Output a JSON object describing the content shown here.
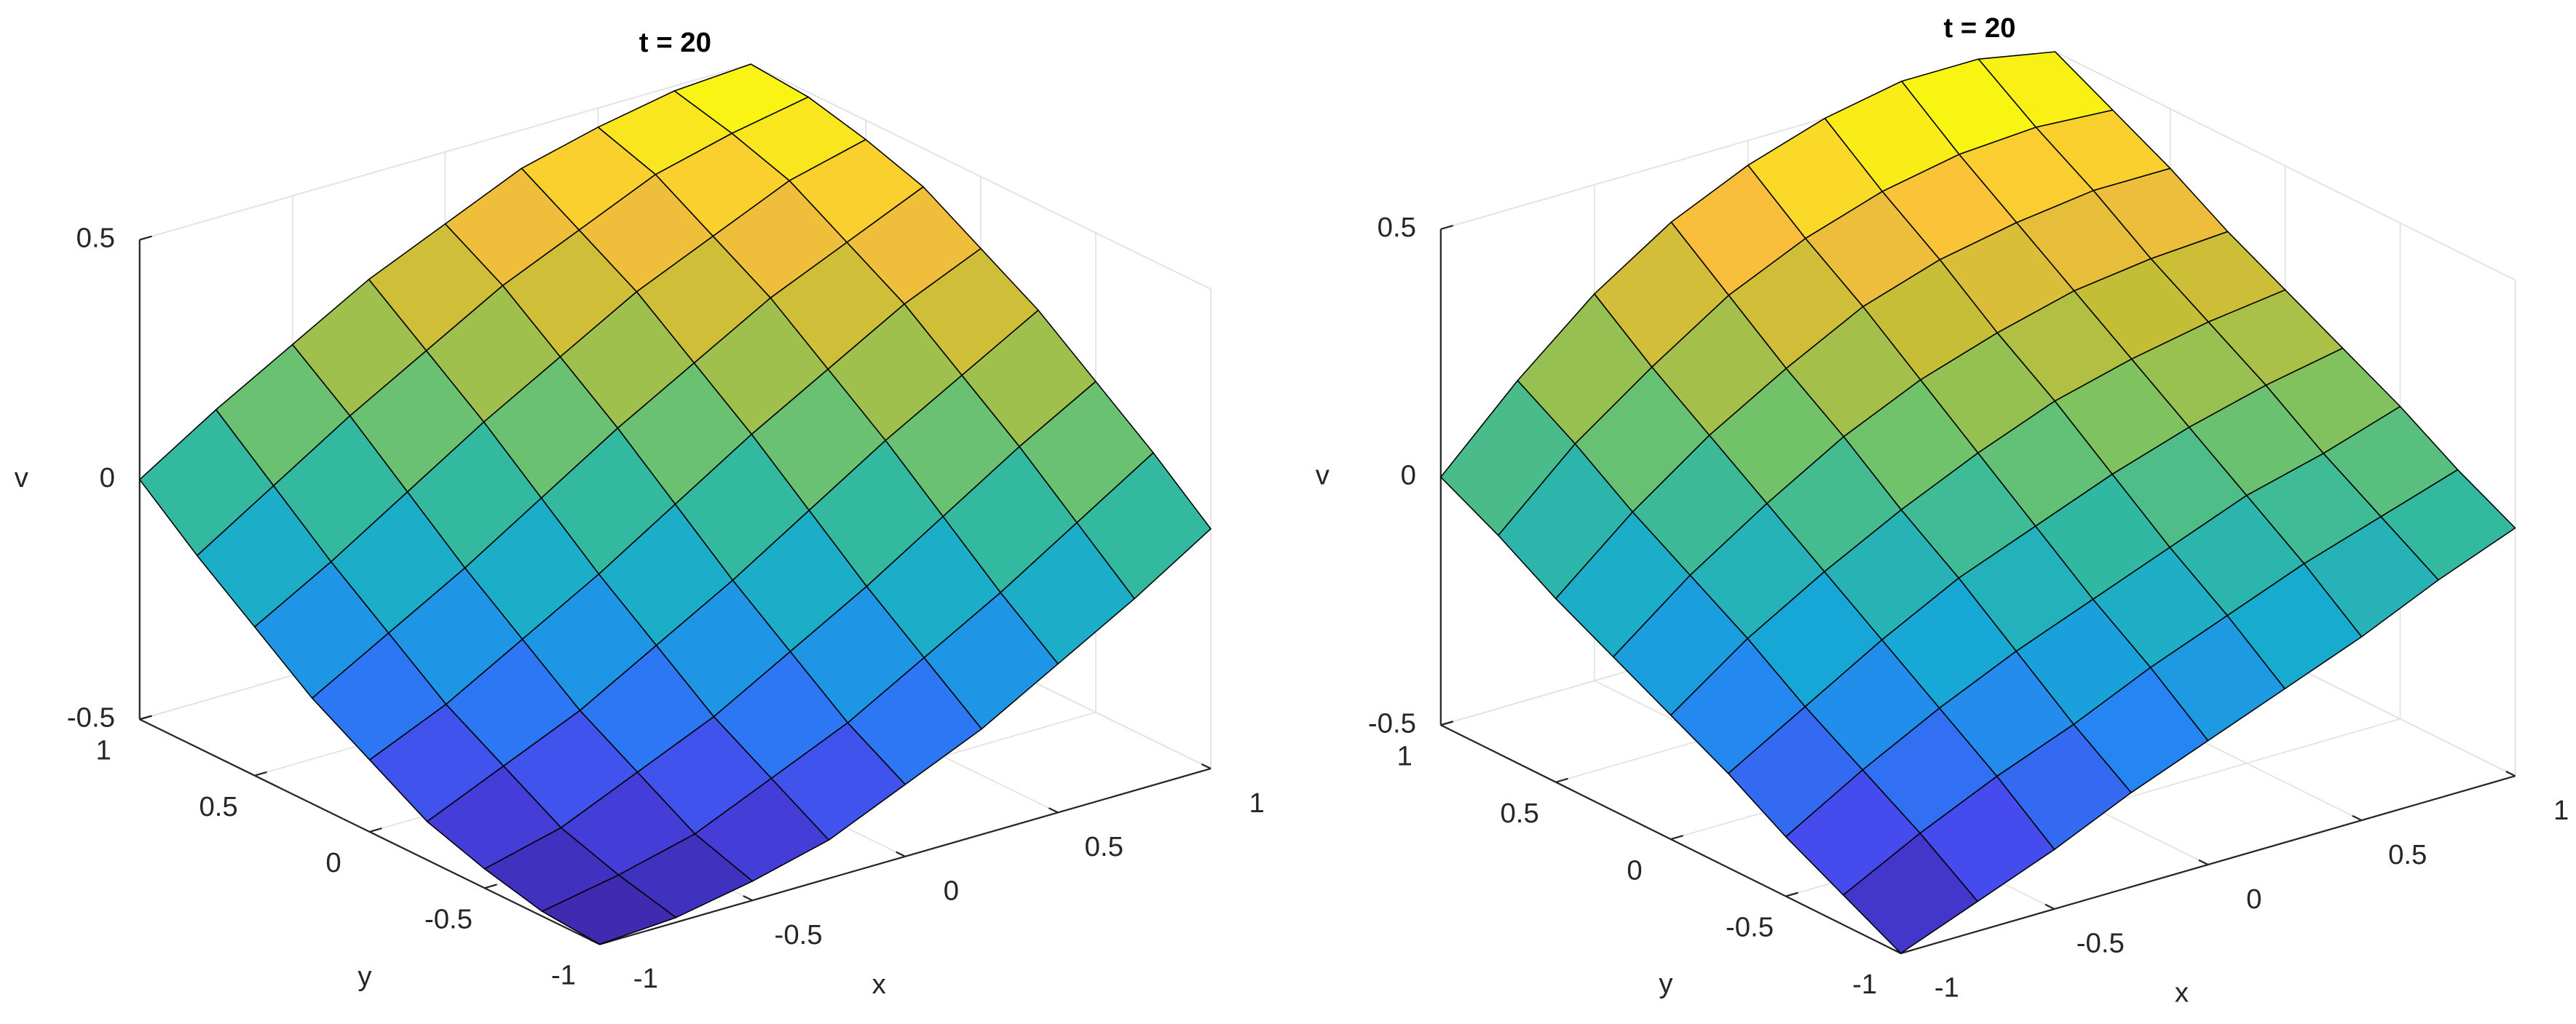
{
  "chart_data": [
    {
      "type": "surface",
      "title": "t = 20",
      "x_label": "x",
      "y_label": "y",
      "z_label": "v",
      "colormap": "parula",
      "grid": true,
      "x": [
        -1,
        -0.75,
        -0.5,
        -0.25,
        0,
        0.25,
        0.5,
        0.75,
        1
      ],
      "y": [
        -1,
        -0.75,
        -0.5,
        -0.25,
        0,
        0.25,
        0.5,
        0.75,
        1
      ],
      "z": [
        [
          -0.5,
          -0.49,
          -0.46,
          -0.42,
          -0.35,
          -0.28,
          -0.19,
          -0.1,
          0
        ],
        [
          -0.49,
          -0.46,
          -0.42,
          -0.35,
          -0.28,
          -0.19,
          -0.1,
          0,
          0.1
        ],
        [
          -0.46,
          -0.42,
          -0.35,
          -0.28,
          -0.19,
          -0.1,
          0,
          0.1,
          0.19
        ],
        [
          -0.42,
          -0.35,
          -0.28,
          -0.19,
          -0.1,
          0,
          0.1,
          0.19,
          0.28
        ],
        [
          -0.35,
          -0.28,
          -0.19,
          -0.1,
          0,
          0.1,
          0.19,
          0.28,
          0.35
        ],
        [
          -0.28,
          -0.19,
          -0.1,
          0,
          0.1,
          0.19,
          0.28,
          0.35,
          0.42
        ],
        [
          -0.19,
          -0.1,
          0,
          0.1,
          0.19,
          0.28,
          0.35,
          0.42,
          0.46
        ],
        [
          -0.1,
          0,
          0.1,
          0.19,
          0.28,
          0.35,
          0.42,
          0.46,
          0.49
        ],
        [
          0,
          0.1,
          0.19,
          0.28,
          0.35,
          0.42,
          0.46,
          0.49,
          0.5
        ]
      ],
      "xlim": [
        -1,
        1
      ],
      "ylim": [
        -1,
        1
      ],
      "zlim": [
        -0.5,
        0.5
      ],
      "xticks": [
        -1,
        -0.5,
        0,
        0.5,
        1
      ],
      "yticks": [
        -1,
        -0.5,
        0,
        0.5,
        1
      ],
      "zticks": [
        -0.5,
        0,
        0.5
      ]
    },
    {
      "type": "surface",
      "title": "t = 20",
      "x_label": "x",
      "y_label": "y",
      "z_label": "v",
      "colormap": "parula",
      "grid": true,
      "x": [
        -1,
        -0.75,
        -0.5,
        -0.25,
        0,
        0.25,
        0.5,
        0.75,
        1
      ],
      "y": [
        -1,
        -0.75,
        -0.5,
        -0.25,
        0,
        0.25,
        0.5,
        0.75,
        1
      ],
      "z": [
        [
          -0.5,
          -0.44,
          -0.38,
          -0.31,
          -0.25,
          -0.19,
          -0.13,
          -0.06,
          0
        ],
        [
          -0.44,
          -0.36,
          -0.29,
          -0.23,
          -0.16,
          -0.1,
          -0.04,
          0.01,
          0.06
        ],
        [
          -0.38,
          -0.29,
          -0.21,
          -0.14,
          -0.08,
          -0.02,
          0.04,
          0.08,
          0.13
        ],
        [
          -0.31,
          -0.22,
          -0.13,
          -0.05,
          0.01,
          0.07,
          0.12,
          0.16,
          0.19
        ],
        [
          -0.25,
          -0.14,
          -0.05,
          0.03,
          0.1,
          0.16,
          0.2,
          0.23,
          0.25
        ],
        [
          -0.19,
          -0.07,
          0.03,
          0.12,
          0.19,
          0.24,
          0.28,
          0.3,
          0.31
        ],
        [
          -0.13,
          0,
          0.11,
          0.2,
          0.28,
          0.33,
          0.36,
          0.38,
          0.38
        ],
        [
          -0.06,
          0.08,
          0.19,
          0.29,
          0.36,
          0.41,
          0.44,
          0.45,
          0.44
        ],
        [
          0,
          0.15,
          0.28,
          0.38,
          0.45,
          0.5,
          0.53,
          0.53,
          0.5
        ]
      ],
      "xlim": [
        -1,
        1
      ],
      "ylim": [
        -1,
        1
      ],
      "zlim": [
        -0.5,
        0.5
      ],
      "xticks": [
        -1,
        -0.5,
        0,
        0.5,
        1
      ],
      "yticks": [
        -1,
        -0.5,
        0,
        0.5,
        1
      ],
      "zticks": [
        -0.5,
        0,
        0.5
      ]
    }
  ]
}
